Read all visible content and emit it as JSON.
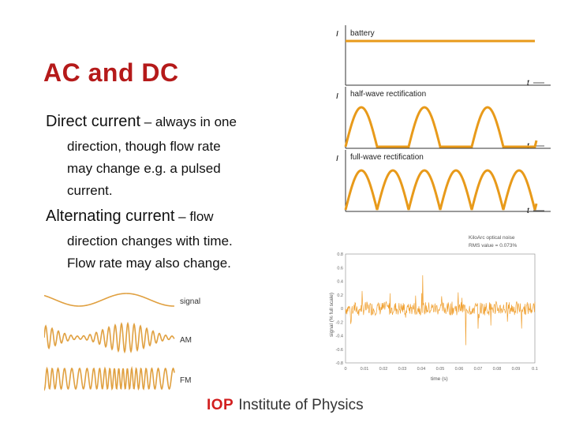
{
  "slide": {
    "title": "AC and DC",
    "dc": {
      "lead": "Direct current",
      "dash": " – always in one",
      "lines": [
        "direction, though flow rate",
        "may change e.g. a pulsed",
        "current."
      ]
    },
    "ac": {
      "lead": "Alternating current",
      "dash": " – flow",
      "lines": [
        "direction changes with time.",
        "Flow rate may also change."
      ]
    }
  },
  "rectification": {
    "axis_i": "I",
    "axis_t": "t",
    "labels": [
      "battery",
      "half-wave rectification",
      "full-wave rectification"
    ],
    "wave_color": "#e89a1a"
  },
  "modulation": {
    "labels": [
      "signal",
      "AM",
      "FM"
    ],
    "wave_color": "#e0a040"
  },
  "noise_chart": {
    "title_line1": "KiloArc optical noise",
    "title_line2": "RMS value = 0.073%",
    "ylabel": "signal (% full scale)",
    "xlabel": "time (s)",
    "y_ticks": [
      "0.8",
      "0.6",
      "0.4",
      "0.2",
      "0",
      "-0.2",
      "-0.4",
      "-0.6",
      "-0.8"
    ],
    "x_ticks": [
      "0",
      "0.01",
      "0.02",
      "0.03",
      "0.04",
      "0.05",
      "0.06",
      "0.07",
      "0.08",
      "0.09",
      "0.1"
    ],
    "color": "#f0a030"
  },
  "footer": {
    "brand": "IOP",
    "name": "Institute of Physics",
    "brand_color": "#d21f1f"
  }
}
